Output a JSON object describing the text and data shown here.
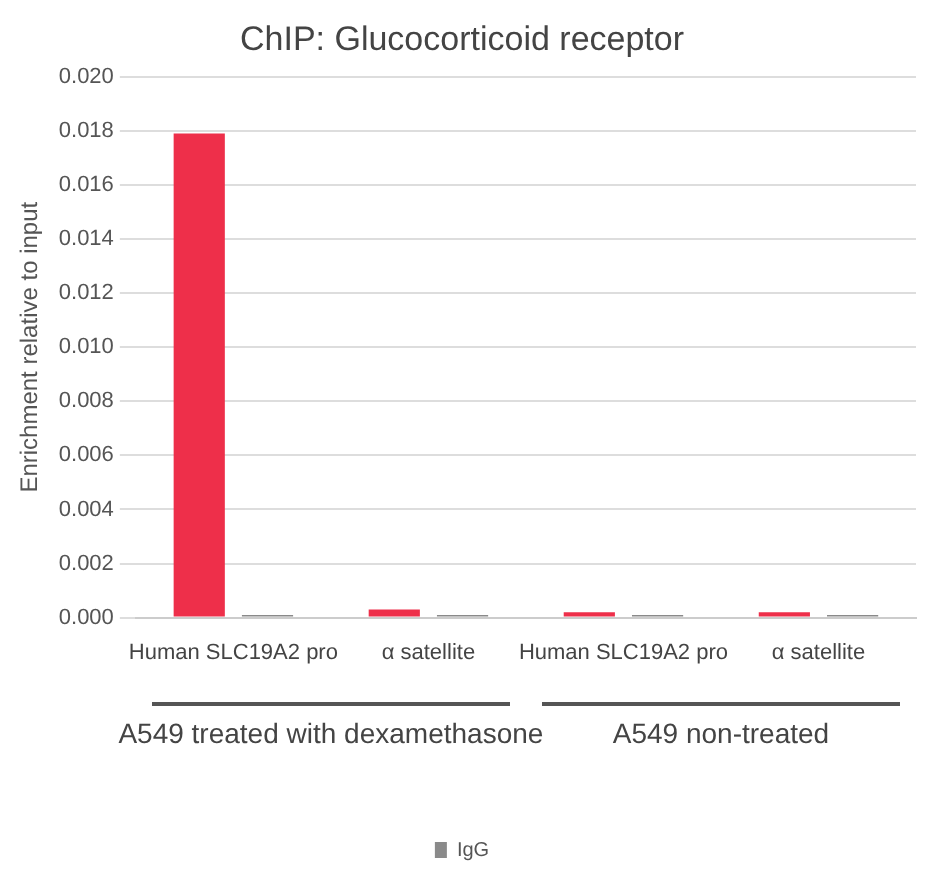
{
  "chart_data": {
    "type": "bar",
    "title": "ChIP: Glucocorticoid receptor",
    "ylabel": "Enrichment relative to input",
    "categories": [
      "Human SLC19A2 pro",
      "α satellite",
      "Human SLC19A2 pro",
      "α satellite"
    ],
    "series": [
      {
        "color": "#ee2f4a",
        "values": [
          0.0179,
          0.0003,
          0.0002,
          0.0002
        ]
      },
      {
        "name": "IgG",
        "color": "#8a8a8a",
        "values": [
          0.0001,
          0.0001,
          0.0001,
          0.0001
        ]
      }
    ],
    "ylim": [
      0,
      0.02
    ],
    "yticks": [
      {
        "value": 0,
        "label": "0.000"
      },
      {
        "value": 0.002,
        "label": "0.002"
      },
      {
        "value": 0.004,
        "label": "0.004"
      },
      {
        "value": 0.006,
        "label": "0.006"
      },
      {
        "value": 0.008,
        "label": "0.008"
      },
      {
        "value": 0.01,
        "label": "0.010"
      },
      {
        "value": 0.012,
        "label": "0.012"
      },
      {
        "value": 0.014,
        "label": "0.014"
      },
      {
        "value": 0.016,
        "label": "0.016"
      },
      {
        "value": 0.018,
        "label": "0.018"
      },
      {
        "value": 0.02,
        "label": "0.020"
      }
    ],
    "annotations": [
      "A549 treated with dexamethasone",
      "A549 non-treated"
    ],
    "grid": "y",
    "legend": "bottom"
  }
}
